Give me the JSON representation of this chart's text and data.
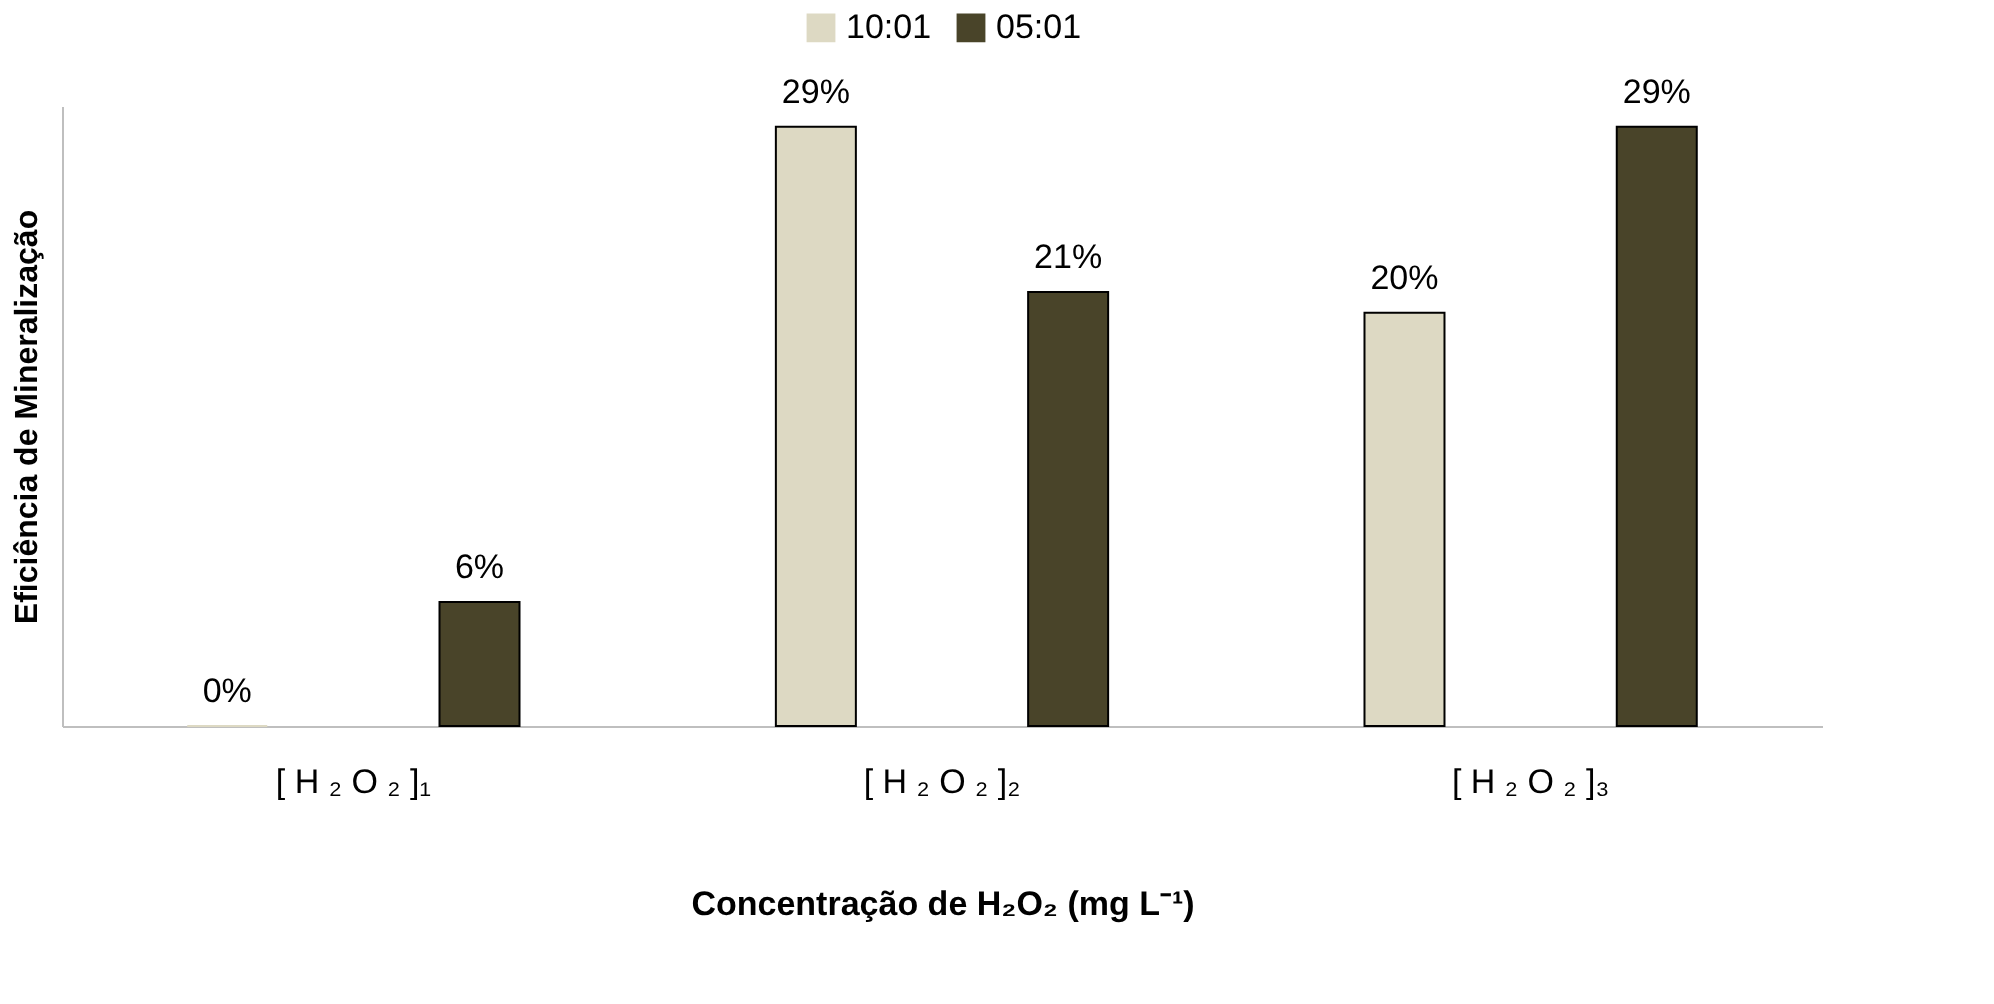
{
  "chart_data": {
    "type": "bar",
    "ylabel": "Eficiência de Mineralização",
    "xlabel": "Concentração de H₂O₂ (mg L⁻¹)",
    "categories": [
      "[ H ₂ O ₂ ]₁",
      "[ H ₂ O ₂ ]₂",
      "[ H ₂ O ₂ ]₃"
    ],
    "series": [
      {
        "name": "10:01",
        "color": "#ddd9c3",
        "values": [
          0,
          29,
          20
        ],
        "value_labels": [
          "0%",
          "29%",
          "20%"
        ]
      },
      {
        "name": "05:01",
        "color": "#494429",
        "values": [
          6,
          21,
          29
        ],
        "value_labels": [
          "6%",
          "21%",
          "29%"
        ]
      }
    ],
    "legend": "top",
    "grid": false
  }
}
